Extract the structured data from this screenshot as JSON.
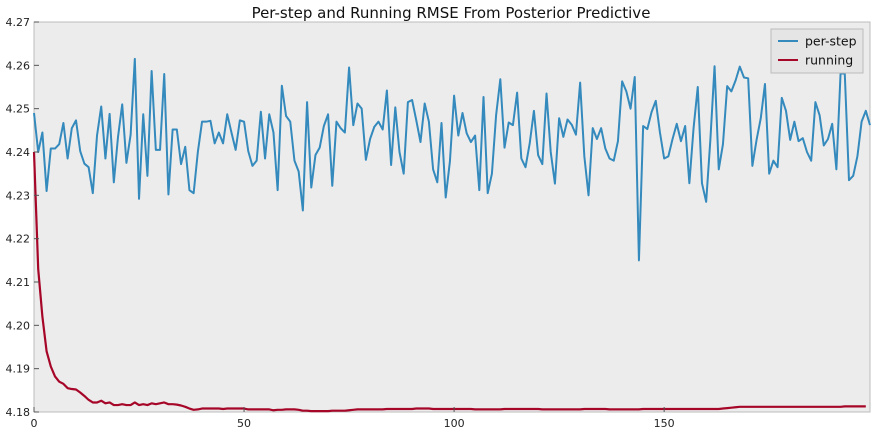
{
  "chart_data": {
    "type": "line",
    "title": "Per-step and Running RMSE From Posterior Predictive",
    "xlabel": "",
    "ylabel": "",
    "xlim": [
      0,
      199
    ],
    "ylim": [
      4.18,
      4.27
    ],
    "xticks": [
      0,
      50,
      100,
      150
    ],
    "yticks": [
      4.18,
      4.19,
      4.2,
      4.21,
      4.22,
      4.23,
      4.24,
      4.25,
      4.26,
      4.27
    ],
    "ytick_labels": [
      "4.18",
      "4.19",
      "4.20",
      "4.21",
      "4.22",
      "4.23",
      "4.24",
      "4.25",
      "4.26",
      "4.27"
    ],
    "xtick_labels": [
      "0",
      "50",
      "100",
      "150"
    ],
    "grid": false,
    "background": "#ececec",
    "legend_position": "top-right",
    "series": [
      {
        "name": "per-step",
        "color": "#348abd",
        "values": [
          4.249,
          4.24,
          4.2445,
          4.231,
          4.2408,
          4.2408,
          4.2418,
          4.2467,
          4.2385,
          4.2455,
          4.2473,
          4.2402,
          4.2373,
          4.2365,
          4.2305,
          4.2438,
          4.2505,
          4.2385,
          4.2488,
          4.233,
          4.2435,
          4.251,
          4.2375,
          4.244,
          4.2615,
          4.2292,
          4.2487,
          4.2345,
          4.2587,
          4.2405,
          4.2405,
          4.258,
          4.2302,
          4.2452,
          4.2452,
          4.2372,
          4.2412,
          4.2312,
          4.2305,
          4.24,
          4.247,
          4.247,
          4.2472,
          4.242,
          4.2445,
          4.242,
          4.2487,
          4.2445,
          4.2405,
          4.2473,
          4.247,
          4.2402,
          4.2368,
          4.238,
          4.2493,
          4.2385,
          4.2487,
          4.2445,
          4.2312,
          4.2553,
          4.2483,
          4.247,
          4.238,
          4.2355,
          4.2265,
          4.2515,
          4.2318,
          4.2393,
          4.241,
          4.246,
          4.2487,
          4.2322,
          4.247,
          4.2455,
          4.2445,
          4.2595,
          4.2462,
          4.2512,
          4.25,
          4.2382,
          4.243,
          4.2458,
          4.247,
          4.2452,
          4.2542,
          4.237,
          4.2503,
          4.24,
          4.235,
          4.2515,
          4.252,
          4.2473,
          4.2423,
          4.2512,
          4.247,
          4.236,
          4.233,
          4.2467,
          4.2295,
          4.2378,
          4.253,
          4.2438,
          4.249,
          4.2443,
          4.2423,
          4.2438,
          4.2312,
          4.2527,
          4.2305,
          4.235,
          4.2485,
          4.2568,
          4.241,
          4.2468,
          4.2462,
          4.2537,
          4.2385,
          4.2365,
          4.242,
          4.2495,
          4.2393,
          4.2372,
          4.2535,
          4.24,
          4.2327,
          4.2478,
          4.2435,
          4.2475,
          4.2463,
          4.244,
          4.256,
          4.239,
          4.23,
          4.2455,
          4.243,
          4.2455,
          4.2408,
          4.2385,
          4.238,
          4.2425,
          4.2563,
          4.254,
          4.25,
          4.2573,
          4.215,
          4.246,
          4.2453,
          4.2492,
          4.2518,
          4.2445,
          4.2385,
          4.239,
          4.243,
          4.2465,
          4.2425,
          4.246,
          4.2328,
          4.2455,
          4.255,
          4.2328,
          4.2285,
          4.2428,
          4.2598,
          4.236,
          4.2418,
          4.2552,
          4.254,
          4.2565,
          4.2597,
          4.2572,
          4.257,
          4.2368,
          4.2428,
          4.2478,
          4.2557,
          4.235,
          4.238,
          4.2365,
          4.2525,
          4.2495,
          4.2428,
          4.247,
          4.2425,
          4.2432,
          4.24,
          4.238,
          4.2515,
          4.2485,
          4.2415,
          4.243,
          4.2465,
          4.236,
          4.2583,
          4.258,
          4.2335,
          4.2345,
          4.239,
          4.247,
          4.2495,
          4.2462
        ]
      },
      {
        "name": "running",
        "color": "#a60628",
        "values": [
          4.24,
          4.213,
          4.202,
          4.194,
          4.1905,
          4.1882,
          4.187,
          4.1865,
          4.1855,
          4.1853,
          4.1852,
          4.1845,
          4.1837,
          4.1828,
          4.1822,
          4.1822,
          4.1826,
          4.182,
          4.1822,
          4.1816,
          4.1816,
          4.1818,
          4.1816,
          4.1816,
          4.1822,
          4.1816,
          4.1818,
          4.1816,
          4.182,
          4.1818,
          4.182,
          4.1822,
          4.1818,
          4.1818,
          4.1817,
          4.1815,
          4.1812,
          4.1808,
          4.1805,
          4.1806,
          4.1808,
          4.1808,
          4.1808,
          4.1808,
          4.1808,
          4.1807,
          4.1808,
          4.1808,
          4.1808,
          4.1808,
          4.1808,
          4.1806,
          4.1806,
          4.1806,
          4.1806,
          4.1806,
          4.1806,
          4.1804,
          4.1805,
          4.1805,
          4.1806,
          4.1806,
          4.1806,
          4.1805,
          4.1803,
          4.1803,
          4.1802,
          4.1802,
          4.1802,
          4.1802,
          4.1802,
          4.1803,
          4.1803,
          4.1803,
          4.1803,
          4.1804,
          4.1805,
          4.1806,
          4.1806,
          4.1806,
          4.1806,
          4.1806,
          4.1806,
          4.1806,
          4.1807,
          4.1807,
          4.1807,
          4.1807,
          4.1807,
          4.1807,
          4.1807,
          4.1808,
          4.1808,
          4.1808,
          4.1808,
          4.1807,
          4.1807,
          4.1807,
          4.1807,
          4.1807,
          4.1807,
          4.1807,
          4.1807,
          4.1807,
          4.1807,
          4.1806,
          4.1806,
          4.1806,
          4.1806,
          4.1806,
          4.1806,
          4.1806,
          4.1807,
          4.1807,
          4.1807,
          4.1807,
          4.1807,
          4.1807,
          4.1807,
          4.1807,
          4.1807,
          4.1806,
          4.1806,
          4.1806,
          4.1806,
          4.1806,
          4.1806,
          4.1806,
          4.1806,
          4.1806,
          4.1806,
          4.1807,
          4.1807,
          4.1807,
          4.1807,
          4.1807,
          4.1807,
          4.1806,
          4.1806,
          4.1806,
          4.1806,
          4.1806,
          4.1806,
          4.1806,
          4.1806,
          4.1807,
          4.1807,
          4.1807,
          4.1807,
          4.1807,
          4.1807,
          4.1807,
          4.1807,
          4.1807,
          4.1807,
          4.1807,
          4.1807,
          4.1807,
          4.1807,
          4.1807,
          4.1807,
          4.1807,
          4.1807,
          4.1807,
          4.1808,
          4.1809,
          4.181,
          4.1811,
          4.1812,
          4.1812,
          4.1812,
          4.1812,
          4.1812,
          4.1812,
          4.1812,
          4.1812,
          4.1812,
          4.1812,
          4.1812,
          4.1812,
          4.1812,
          4.1812,
          4.1812,
          4.1812,
          4.1812,
          4.1812,
          4.1812,
          4.1812,
          4.1812,
          4.1812,
          4.1812,
          4.1812,
          4.1812,
          4.1813,
          4.1813,
          4.1813,
          4.1813,
          4.1813,
          4.1813
        ]
      }
    ]
  }
}
